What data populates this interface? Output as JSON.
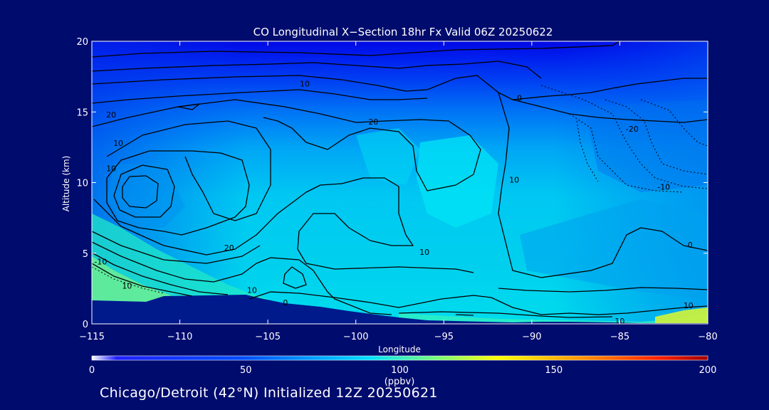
{
  "chart_data": {
    "type": "heatmap",
    "title": "CO Longitudinal X−Section 18hr  Fx Valid 06Z 20250622",
    "xlabel": "Longitude",
    "ylabel": "Altitude (km)",
    "xlim": [
      -115,
      -80
    ],
    "ylim": [
      0,
      20
    ],
    "x_ticks": [
      -115,
      -110,
      -105,
      -100,
      -95,
      -90,
      -85,
      -80
    ],
    "x_tick_labels": [
      "−115",
      "−110",
      "−105",
      "−100",
      "−95",
      "−90",
      "−85",
      "−80"
    ],
    "y_ticks": [
      0,
      5,
      10,
      15,
      20
    ],
    "y_tick_labels": [
      "0",
      "5",
      "10",
      "15",
      "20"
    ],
    "contour_labels": [
      {
        "text": "10",
        "lon": -102.9,
        "lat_km": 17.0
      },
      {
        "text": "0",
        "lon": -90.7,
        "lat_km": 16.0
      },
      {
        "text": "20",
        "lon": -113.9,
        "lat_km": 14.8
      },
      {
        "text": "20",
        "lon": -99.0,
        "lat_km": 14.3
      },
      {
        "text": "-20",
        "lon": -84.3,
        "lat_km": 13.8
      },
      {
        "text": "10",
        "lon": -113.5,
        "lat_km": 12.8
      },
      {
        "text": "10",
        "lon": -113.9,
        "lat_km": 11.0
      },
      {
        "text": "10",
        "lon": -91.0,
        "lat_km": 10.2
      },
      {
        "text": "-10",
        "lon": -82.5,
        "lat_km": 9.7
      },
      {
        "text": "20",
        "lon": -107.2,
        "lat_km": 5.4
      },
      {
        "text": "10",
        "lon": -96.1,
        "lat_km": 5.1
      },
      {
        "text": "0",
        "lon": -81.0,
        "lat_km": 5.6
      },
      {
        "text": "-10",
        "lon": -114.5,
        "lat_km": 4.4
      },
      {
        "text": "10",
        "lon": -113.0,
        "lat_km": 2.7
      },
      {
        "text": "10",
        "lon": -105.9,
        "lat_km": 2.4
      },
      {
        "text": "0",
        "lon": -104.0,
        "lat_km": 1.5
      },
      {
        "text": "10",
        "lon": -81.1,
        "lat_km": 1.3
      },
      {
        "text": "10",
        "lon": -85.0,
        "lat_km": 0.2
      }
    ],
    "grid": false,
    "colorbar": {
      "min": 0,
      "max": 200,
      "ticks": [
        0,
        50,
        100,
        150,
        200
      ],
      "tick_labels": [
        "0",
        "50",
        "100",
        "150",
        "200"
      ],
      "unit": "(ppbv)"
    }
  },
  "footer": "Chicago/Detroit (42°N) Initialized 12Z 20250621",
  "colors": {
    "background": "#000b6e",
    "terrain": "#001a8c",
    "contour": "#000000",
    "text": "#ffffff"
  }
}
